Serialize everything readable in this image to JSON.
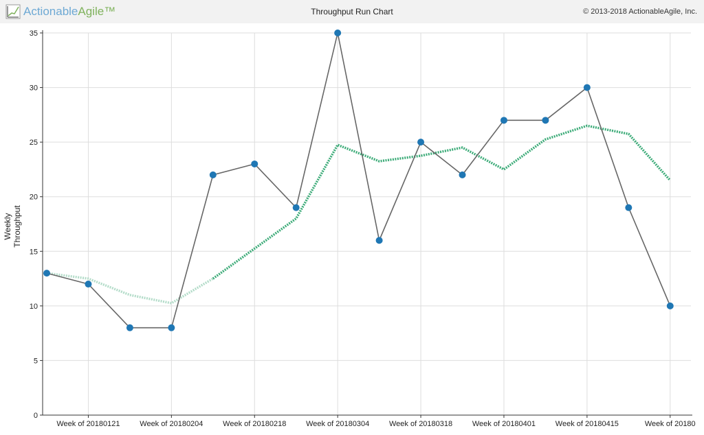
{
  "header": {
    "brand_part1": "Actionable",
    "brand_part2": "Agile™",
    "title": "Throughput Run Chart",
    "copyright": "© 2013-2018 ActionableAgile, Inc.",
    "logo_icon": "chart-logo-icon"
  },
  "colors": {
    "series_line": "#666666",
    "series_point": "#1f77b4",
    "moving_average": "#3cab78",
    "moving_average_faded": "#b3dcc9",
    "grid": "#dddddd",
    "axis": "#333333"
  },
  "chart_data": {
    "type": "line",
    "ylabel": "Weekly Throughput",
    "xlabel": "",
    "ylim": [
      0,
      35
    ],
    "yticks": [
      0,
      5,
      10,
      15,
      20,
      25,
      30,
      35
    ],
    "x_index_range": [
      0,
      15.5
    ],
    "xtick_labels": [
      {
        "index": 1,
        "label": "Week of 20180121"
      },
      {
        "index": 3,
        "label": "Week of 20180204"
      },
      {
        "index": 5,
        "label": "Week of 20180218"
      },
      {
        "index": 7,
        "label": "Week of 20180304"
      },
      {
        "index": 9,
        "label": "Week of 20180318"
      },
      {
        "index": 11,
        "label": "Week of 20180401"
      },
      {
        "index": 13,
        "label": "Week of 20180415"
      },
      {
        "index": 15,
        "label": "Week of 20180"
      }
    ],
    "grid": true,
    "series": [
      {
        "values": [
          13,
          12,
          8,
          8,
          22,
          23,
          19,
          35,
          16,
          25,
          22,
          27,
          27,
          30,
          19,
          10
        ]
      },
      {
        "style": "dotted",
        "values": [
          13,
          12.5,
          11,
          10.25,
          12.5,
          15.25,
          18,
          24.75,
          23.25,
          23.75,
          24.5,
          22.5,
          25.25,
          26.5,
          25.75,
          21.5
        ],
        "faded_until_index": 4
      }
    ]
  }
}
